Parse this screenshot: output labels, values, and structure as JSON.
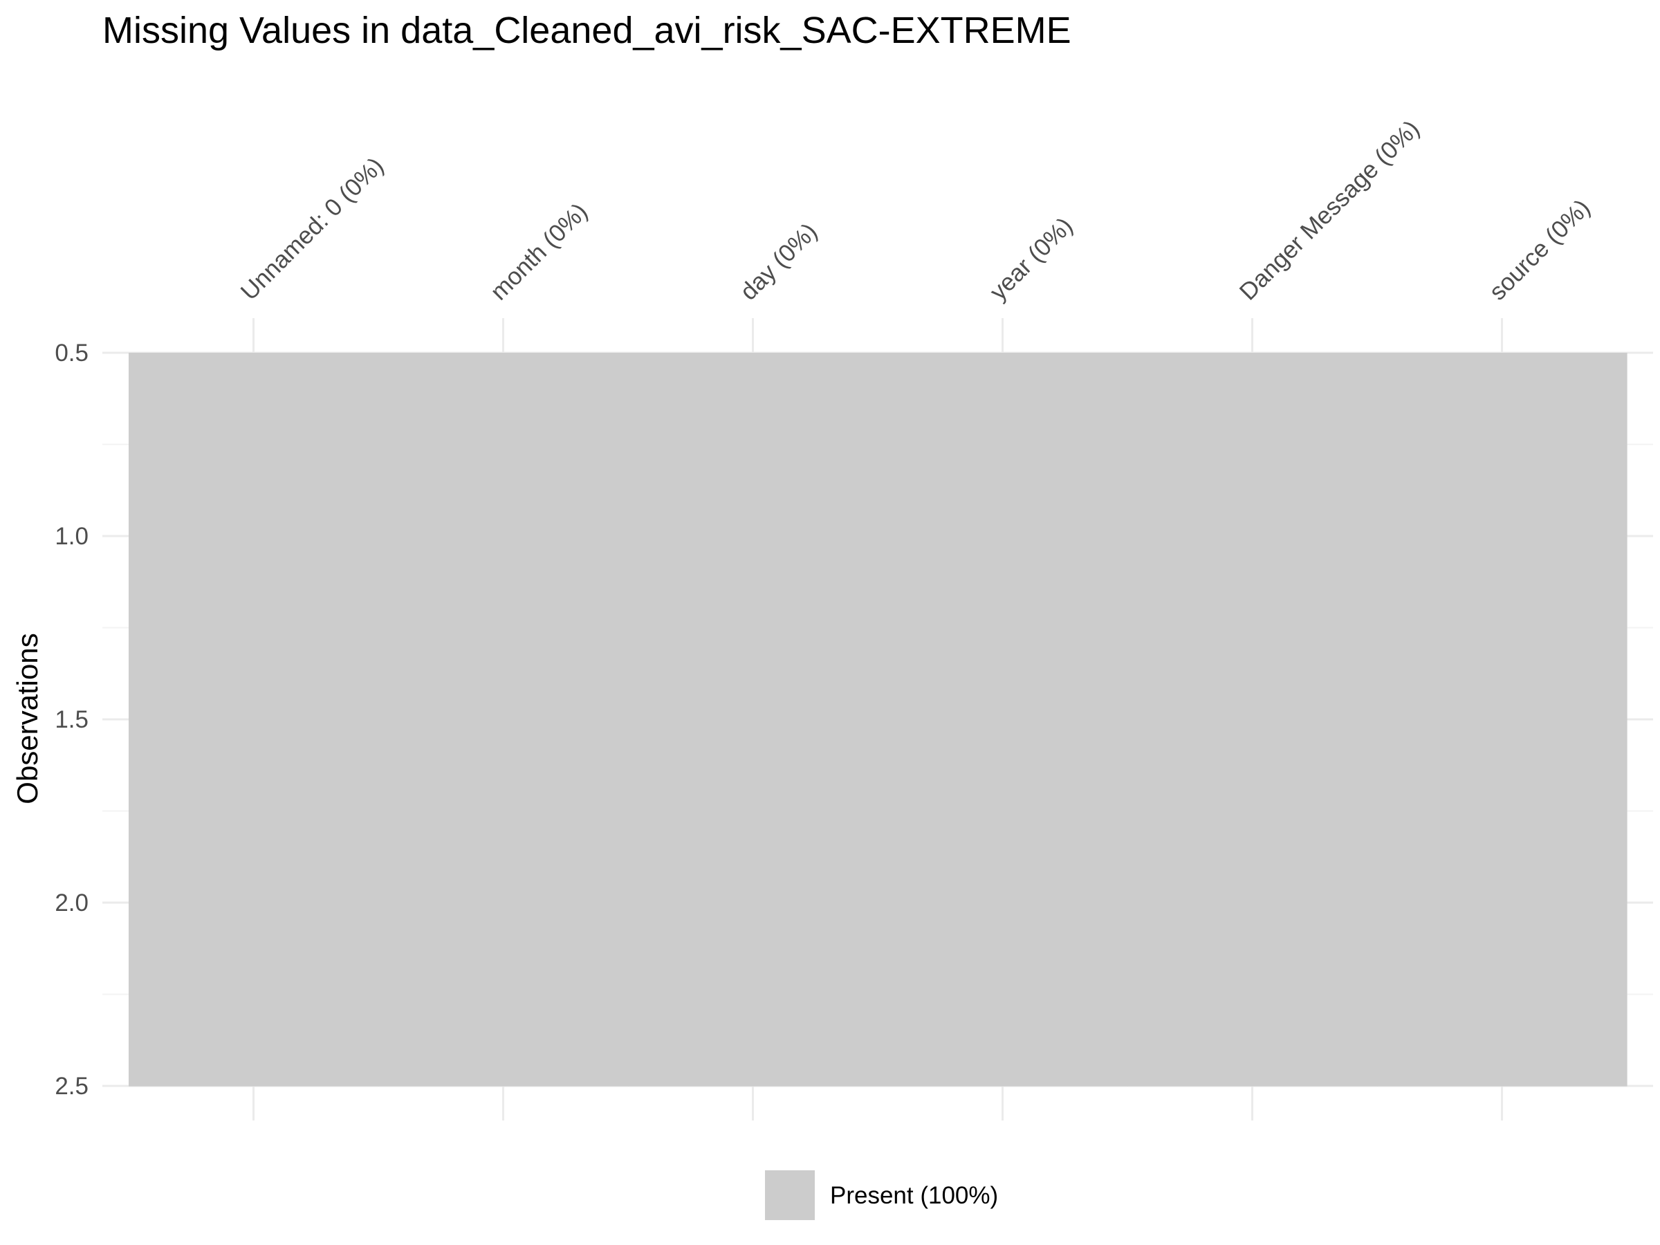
{
  "chart_data": {
    "type": "heatmap",
    "title": "Missing Values in data_Cleaned_avi_risk_SAC-EXTREME",
    "xlabel": "",
    "ylabel": "Observations",
    "columns": [
      "Unnamed: 0 (0%)",
      "month (0%)",
      "day (0%)",
      "year (0%)",
      "Danger Message (0%)",
      "source (0%)"
    ],
    "observations": [
      1,
      2
    ],
    "cells": [
      [
        "Present",
        "Present",
        "Present",
        "Present",
        "Present",
        "Present"
      ],
      [
        "Present",
        "Present",
        "Present",
        "Present",
        "Present",
        "Present"
      ]
    ],
    "ylim": [
      2.5,
      0.5
    ],
    "yticks": [
      "0.5",
      "1.0",
      "1.5",
      "2.0",
      "2.5"
    ],
    "legend": {
      "position": "bottom",
      "entries": [
        {
          "label": "Present (100%)",
          "color": "#cccccc"
        }
      ]
    },
    "grid": true,
    "x_axis_position": "top"
  },
  "colors": {
    "present": "#cccccc",
    "grid_major": "#ebebeb",
    "grid_minor": "#f3f3f3"
  }
}
